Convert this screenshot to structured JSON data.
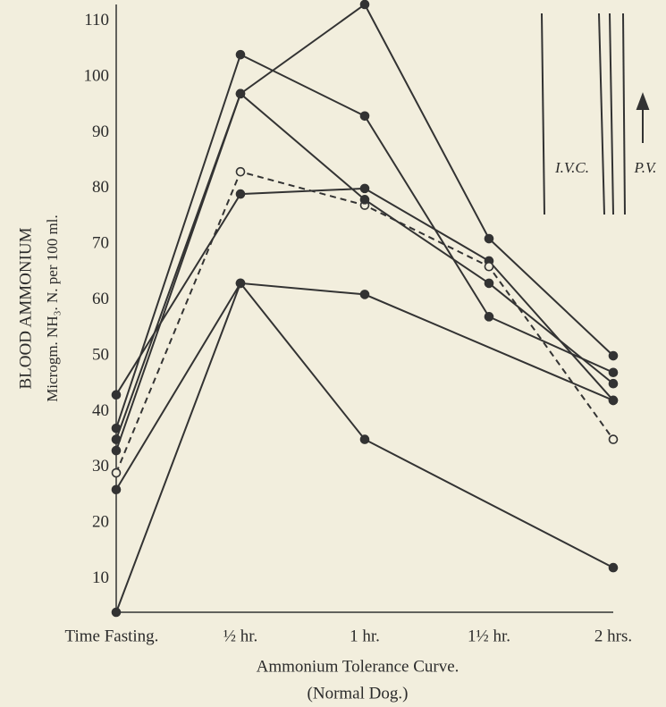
{
  "chart_data": {
    "type": "line",
    "title": "Ammonium Tolerance Curve.",
    "subtitle": "(Normal Dog.)",
    "y_label": "BLOOD AMMONIUM",
    "y_label_2": "Microgm. NH₃. N. per 100 ml.",
    "annotations": [
      "I.V.C.",
      "P.V."
    ],
    "xlim": [
      0,
      2
    ],
    "xticks": [
      {
        "value": 0,
        "label": "Time Fasting."
      },
      {
        "value": 0.5,
        "label": "½ hr."
      },
      {
        "value": 1,
        "label": "1 hr."
      },
      {
        "value": 1.5,
        "label": "1½ hr."
      },
      {
        "value": 2,
        "label": "2 hrs."
      }
    ],
    "ylim": [
      4,
      113
    ],
    "yticks": [
      10,
      20,
      30,
      40,
      50,
      60,
      70,
      80,
      90,
      100,
      110
    ],
    "grid": false,
    "series": [
      {
        "color": "#333333",
        "x": [
          0,
          0.5,
          1,
          2
        ],
        "values": [
          4,
          63,
          35,
          12
        ]
      },
      {
        "color": "#333333",
        "x": [
          0,
          0.5,
          1,
          2
        ],
        "values": [
          26,
          63,
          61,
          42
        ]
      },
      {
        "color": "#333333",
        "x": [
          0,
          0.5,
          1,
          1.5,
          2
        ],
        "values": [
          43,
          79,
          80,
          67,
          42
        ]
      },
      {
        "color": "#333333",
        "x": [
          0,
          0.5,
          1,
          1.5,
          2
        ],
        "values": [
          29,
          83,
          77,
          66,
          35
        ],
        "dashed": true,
        "marker": "open"
      },
      {
        "color": "#333333",
        "x": [
          0,
          0.5,
          1,
          1.5,
          2
        ],
        "values": [
          37,
          104,
          93,
          57,
          47
        ]
      },
      {
        "color": "#333333",
        "x": [
          0,
          0.5,
          1,
          1.5,
          2
        ],
        "values": [
          33,
          97,
          113,
          71,
          50
        ]
      },
      {
        "color": "#333333",
        "x": [
          0,
          0.5,
          1,
          1.5,
          2
        ],
        "values": [
          35,
          97,
          78,
          63,
          45
        ]
      }
    ]
  }
}
